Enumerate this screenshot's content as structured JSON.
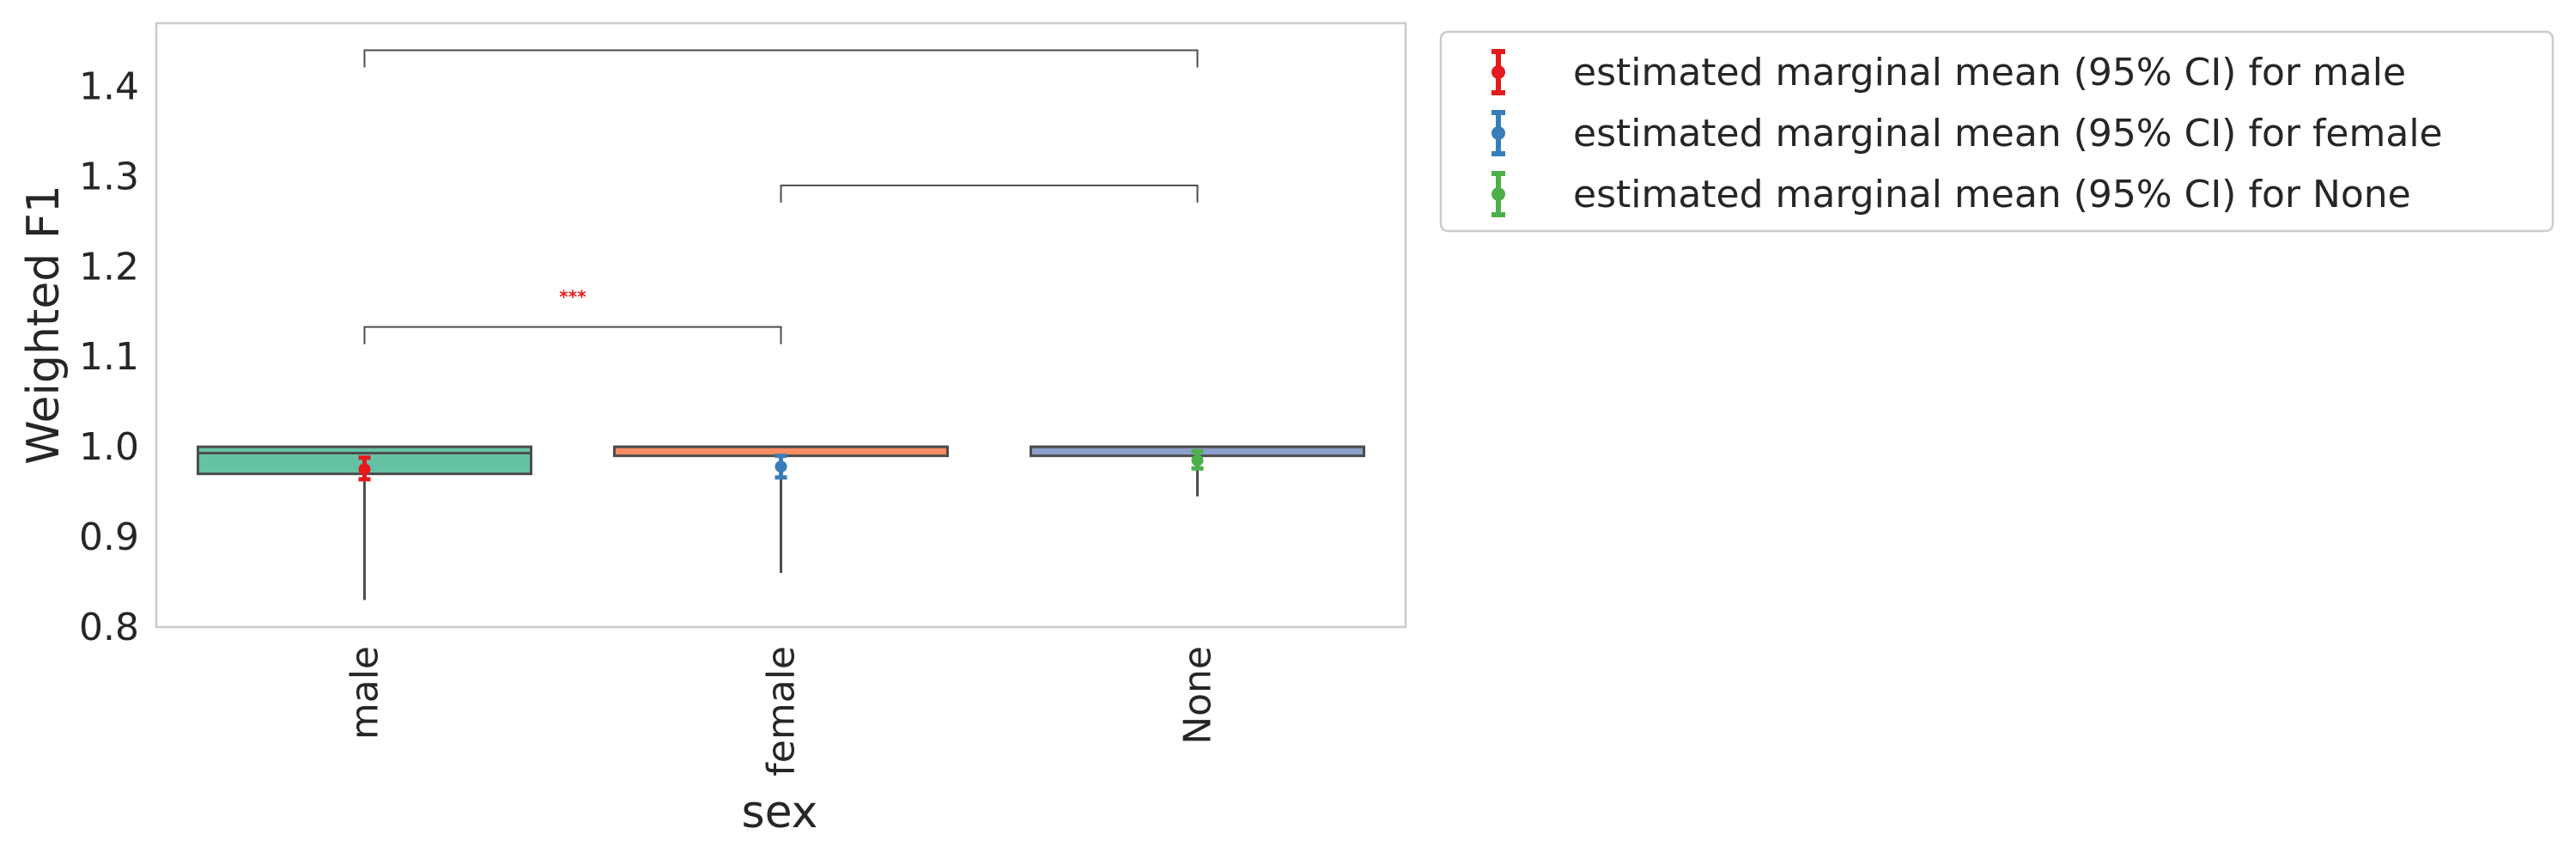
{
  "chart_data": {
    "type": "box",
    "xlabel": "sex",
    "ylabel": "Weighted F1",
    "ylim": [
      0.8,
      1.47
    ],
    "yticks": [
      "0.8",
      "0.9",
      "1.0",
      "1.1",
      "1.2",
      "1.3",
      "1.4"
    ],
    "ytick_values": [
      0.8,
      0.9,
      1.0,
      1.1,
      1.2,
      1.3,
      1.4
    ],
    "categories": [
      "male",
      "female",
      "None"
    ],
    "grid": false,
    "legend_position": "outside-right-top",
    "boxes": [
      {
        "category": "male",
        "whisker_low": 0.83,
        "q1": 0.97,
        "median": 0.993,
        "q3": 1.0,
        "whisker_high": 1.0,
        "color": "#66c2a5"
      },
      {
        "category": "female",
        "whisker_low": 0.86,
        "q1": 0.99,
        "median": 1.0,
        "q3": 1.0,
        "whisker_high": 1.0,
        "color": "#fc8d62"
      },
      {
        "category": "None",
        "whisker_low": 0.945,
        "q1": 0.99,
        "median": 1.0,
        "q3": 1.0,
        "whisker_high": 1.0,
        "color": "#8da0cb"
      }
    ],
    "series": [
      {
        "name": "estimated marginal mean (95% CI) for male",
        "category": "male",
        "mean": 0.975,
        "ci": [
          0.964,
          0.988
        ],
        "color": "#e41a1c"
      },
      {
        "name": "estimated marginal mean (95% CI) for female",
        "category": "female",
        "mean": 0.978,
        "ci": [
          0.966,
          0.99
        ],
        "color": "#377eb8"
      },
      {
        "name": "estimated marginal mean (95% CI) for None",
        "category": "None",
        "mean": 0.985,
        "ci": [
          0.976,
          0.995
        ],
        "color": "#4daf4a"
      }
    ],
    "comparisons": [
      {
        "from": "male",
        "to": "None",
        "y": 1.44,
        "label": ""
      },
      {
        "from": "female",
        "to": "None",
        "y": 1.29,
        "label": ""
      },
      {
        "from": "male",
        "to": "female",
        "y": 1.133,
        "label": "***",
        "label_color": "#e41a1c"
      }
    ]
  }
}
